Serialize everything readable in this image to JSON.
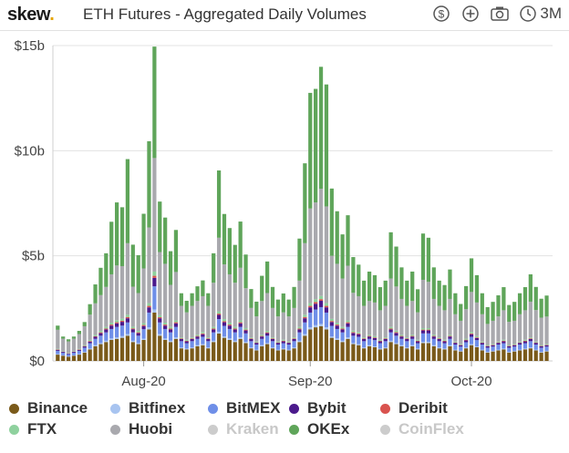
{
  "header": {
    "logo": "skew",
    "logo_dot": ".",
    "title": "ETH Futures - Aggregated Daily Volumes",
    "range": "3M",
    "icons": [
      "dollar-icon",
      "plus-circle-icon",
      "camera-icon",
      "clock-icon"
    ]
  },
  "chart_data": {
    "type": "bar",
    "stacked": true,
    "ylim": [
      0,
      15
    ],
    "y_ticks": [
      "$0",
      "$5b",
      "$10b",
      "$15b"
    ],
    "y_tick_values": [
      0,
      5,
      10,
      15
    ],
    "x_ticks": [
      "Aug-20",
      "Sep-20",
      "Oct-20"
    ],
    "x_tick_indices": [
      16,
      47,
      77
    ],
    "grid": true,
    "legend_position": "bottom",
    "series": [
      {
        "name": "Binance",
        "color": "#7a5a1a",
        "visible": true,
        "values": [
          0.3,
          0.25,
          0.2,
          0.25,
          0.3,
          0.4,
          0.55,
          0.7,
          0.8,
          0.9,
          1.0,
          1.05,
          1.1,
          1.2,
          0.9,
          0.8,
          1.0,
          1.5,
          2.3,
          1.2,
          1.0,
          0.9,
          1.05,
          0.6,
          0.55,
          0.6,
          0.7,
          0.75,
          0.6,
          0.9,
          1.3,
          1.1,
          1.0,
          0.9,
          1.05,
          0.85,
          0.6,
          0.5,
          0.7,
          0.8,
          0.6,
          0.5,
          0.55,
          0.5,
          0.6,
          0.9,
          1.2,
          1.5,
          1.6,
          1.65,
          1.5,
          1.1,
          1.0,
          0.9,
          1.05,
          0.8,
          0.75,
          0.6,
          0.7,
          0.65,
          0.55,
          0.6,
          0.9,
          0.8,
          0.7,
          0.6,
          0.7,
          0.55,
          0.85,
          0.85,
          0.7,
          0.6,
          0.55,
          0.7,
          0.5,
          0.45,
          0.6,
          0.75,
          0.65,
          0.5,
          0.4,
          0.45,
          0.5,
          0.55,
          0.4,
          0.45,
          0.5,
          0.55,
          0.6,
          0.5,
          0.4,
          0.45
        ]
      },
      {
        "name": "Bitfinex",
        "color": "#a8c4f0",
        "visible": true,
        "values": [
          0.03,
          0.02,
          0.02,
          0.02,
          0.03,
          0.03,
          0.04,
          0.05,
          0.05,
          0.06,
          0.07,
          0.07,
          0.08,
          0.08,
          0.06,
          0.05,
          0.06,
          0.1,
          0.15,
          0.08,
          0.07,
          0.06,
          0.07,
          0.04,
          0.04,
          0.04,
          0.05,
          0.05,
          0.04,
          0.06,
          0.09,
          0.07,
          0.07,
          0.06,
          0.07,
          0.06,
          0.04,
          0.03,
          0.05,
          0.05,
          0.04,
          0.03,
          0.04,
          0.03,
          0.04,
          0.06,
          0.08,
          0.1,
          0.1,
          0.11,
          0.1,
          0.07,
          0.07,
          0.06,
          0.07,
          0.05,
          0.05,
          0.04,
          0.05,
          0.04,
          0.04,
          0.04,
          0.06,
          0.05,
          0.05,
          0.04,
          0.05,
          0.04,
          0.06,
          0.06,
          0.05,
          0.04,
          0.04,
          0.05,
          0.03,
          0.03,
          0.04,
          0.05,
          0.04,
          0.03,
          0.03,
          0.03,
          0.03,
          0.04,
          0.03,
          0.03,
          0.03,
          0.04,
          0.04,
          0.03,
          0.03,
          0.03
        ]
      },
      {
        "name": "BitMEX",
        "color": "#6f8fe8",
        "visible": true,
        "values": [
          0.15,
          0.12,
          0.1,
          0.12,
          0.15,
          0.2,
          0.25,
          0.3,
          0.35,
          0.4,
          0.45,
          0.5,
          0.5,
          0.55,
          0.4,
          0.35,
          0.45,
          0.7,
          1.1,
          0.55,
          0.45,
          0.4,
          0.5,
          0.3,
          0.25,
          0.3,
          0.3,
          0.35,
          0.3,
          0.4,
          0.6,
          0.5,
          0.45,
          0.4,
          0.5,
          0.4,
          0.3,
          0.25,
          0.3,
          0.35,
          0.3,
          0.25,
          0.25,
          0.25,
          0.3,
          0.4,
          0.55,
          0.7,
          0.75,
          0.8,
          0.7,
          0.5,
          0.45,
          0.4,
          0.5,
          0.35,
          0.35,
          0.3,
          0.3,
          0.3,
          0.25,
          0.3,
          0.4,
          0.35,
          0.3,
          0.3,
          0.3,
          0.25,
          0.4,
          0.4,
          0.3,
          0.3,
          0.25,
          0.3,
          0.25,
          0.2,
          0.25,
          0.35,
          0.3,
          0.25,
          0.2,
          0.2,
          0.25,
          0.25,
          0.2,
          0.2,
          0.25,
          0.25,
          0.3,
          0.25,
          0.2,
          0.2
        ]
      },
      {
        "name": "Bybit",
        "color": "#4b1a8c",
        "visible": true,
        "values": [
          0.05,
          0.04,
          0.03,
          0.04,
          0.05,
          0.06,
          0.08,
          0.1,
          0.12,
          0.14,
          0.16,
          0.17,
          0.18,
          0.2,
          0.15,
          0.12,
          0.15,
          0.25,
          0.4,
          0.2,
          0.16,
          0.14,
          0.17,
          0.1,
          0.09,
          0.1,
          0.11,
          0.12,
          0.1,
          0.14,
          0.2,
          0.17,
          0.16,
          0.14,
          0.17,
          0.14,
          0.1,
          0.08,
          0.11,
          0.12,
          0.1,
          0.08,
          0.09,
          0.08,
          0.1,
          0.14,
          0.2,
          0.25,
          0.27,
          0.3,
          0.25,
          0.18,
          0.16,
          0.14,
          0.17,
          0.13,
          0.12,
          0.1,
          0.11,
          0.1,
          0.09,
          0.1,
          0.14,
          0.13,
          0.11,
          0.1,
          0.11,
          0.09,
          0.14,
          0.14,
          0.11,
          0.1,
          0.09,
          0.11,
          0.08,
          0.07,
          0.09,
          0.12,
          0.1,
          0.08,
          0.07,
          0.07,
          0.08,
          0.09,
          0.07,
          0.07,
          0.08,
          0.09,
          0.1,
          0.08,
          0.07,
          0.07
        ]
      },
      {
        "name": "Deribit",
        "color": "#d9534f",
        "visible": true,
        "values": [
          0.02,
          0.01,
          0.01,
          0.01,
          0.02,
          0.02,
          0.03,
          0.03,
          0.04,
          0.04,
          0.05,
          0.05,
          0.05,
          0.06,
          0.04,
          0.04,
          0.05,
          0.07,
          0.1,
          0.05,
          0.05,
          0.04,
          0.05,
          0.03,
          0.03,
          0.03,
          0.03,
          0.04,
          0.03,
          0.04,
          0.06,
          0.05,
          0.05,
          0.04,
          0.05,
          0.04,
          0.03,
          0.02,
          0.03,
          0.04,
          0.03,
          0.02,
          0.03,
          0.02,
          0.03,
          0.04,
          0.06,
          0.07,
          0.08,
          0.08,
          0.07,
          0.05,
          0.05,
          0.04,
          0.05,
          0.04,
          0.04,
          0.03,
          0.03,
          0.03,
          0.03,
          0.03,
          0.04,
          0.04,
          0.03,
          0.03,
          0.03,
          0.03,
          0.04,
          0.04,
          0.03,
          0.03,
          0.03,
          0.03,
          0.02,
          0.02,
          0.03,
          0.04,
          0.03,
          0.02,
          0.02,
          0.02,
          0.02,
          0.03,
          0.02,
          0.02,
          0.02,
          0.03,
          0.03,
          0.02,
          0.02,
          0.02
        ]
      },
      {
        "name": "FTX",
        "color": "#8fd19e",
        "visible": true,
        "values": [
          0.03,
          0.02,
          0.02,
          0.02,
          0.03,
          0.04,
          0.05,
          0.06,
          0.07,
          0.08,
          0.09,
          0.1,
          0.1,
          0.11,
          0.08,
          0.07,
          0.09,
          0.13,
          0.2,
          0.1,
          0.09,
          0.08,
          0.09,
          0.05,
          0.05,
          0.05,
          0.06,
          0.07,
          0.05,
          0.08,
          0.11,
          0.1,
          0.09,
          0.08,
          0.09,
          0.07,
          0.05,
          0.04,
          0.06,
          0.07,
          0.05,
          0.04,
          0.05,
          0.04,
          0.05,
          0.08,
          0.11,
          0.13,
          0.14,
          0.15,
          0.13,
          0.1,
          0.09,
          0.08,
          0.09,
          0.07,
          0.07,
          0.05,
          0.06,
          0.06,
          0.05,
          0.05,
          0.08,
          0.07,
          0.06,
          0.05,
          0.06,
          0.05,
          0.07,
          0.07,
          0.06,
          0.05,
          0.05,
          0.06,
          0.04,
          0.04,
          0.05,
          0.07,
          0.06,
          0.04,
          0.04,
          0.04,
          0.04,
          0.05,
          0.04,
          0.04,
          0.04,
          0.05,
          0.05,
          0.04,
          0.04,
          0.04
        ]
      },
      {
        "name": "Huobi",
        "color": "#a9a9ae",
        "visible": true,
        "values": [
          0.9,
          0.6,
          0.55,
          0.6,
          0.7,
          0.9,
          1.2,
          1.5,
          1.7,
          1.9,
          2.3,
          2.6,
          2.5,
          3.4,
          1.9,
          1.8,
          2.6,
          3.6,
          5.4,
          3.0,
          2.8,
          2.0,
          2.3,
          1.5,
          1.3,
          1.5,
          1.6,
          1.7,
          1.5,
          2.1,
          3.5,
          2.6,
          2.3,
          2.1,
          2.5,
          1.9,
          1.4,
          1.2,
          1.6,
          1.8,
          1.4,
          1.2,
          1.3,
          1.2,
          1.4,
          2.2,
          3.4,
          4.5,
          4.6,
          5.1,
          4.6,
          3.0,
          2.8,
          2.3,
          2.6,
          1.8,
          1.7,
          1.5,
          1.6,
          1.6,
          1.4,
          1.5,
          2.3,
          2.1,
          1.7,
          1.5,
          1.6,
          1.3,
          2.3,
          2.2,
          1.7,
          1.5,
          1.4,
          1.7,
          1.3,
          1.1,
          1.4,
          1.9,
          1.6,
          1.3,
          1.0,
          1.1,
          1.2,
          1.4,
          1.1,
          1.1,
          1.3,
          1.4,
          1.7,
          1.5,
          1.3,
          1.3
        ]
      },
      {
        "name": "Kraken",
        "color": "#d0d0d0",
        "visible": false,
        "values": []
      },
      {
        "name": "OKEx",
        "color": "#5fa55a",
        "visible": true,
        "values": [
          0.2,
          0.1,
          0.1,
          0.1,
          0.15,
          0.2,
          0.5,
          0.9,
          1.3,
          1.6,
          2.5,
          3.0,
          2.8,
          4.0,
          2.0,
          1.8,
          2.6,
          4.1,
          5.3,
          2.4,
          2.2,
          1.6,
          2.0,
          0.6,
          0.55,
          0.6,
          0.7,
          0.75,
          0.6,
          1.4,
          3.2,
          2.4,
          2.2,
          1.8,
          2.2,
          1.6,
          0.9,
          0.7,
          1.2,
          1.5,
          1.0,
          0.8,
          0.9,
          0.8,
          1.0,
          2.0,
          3.8,
          5.5,
          5.4,
          5.8,
          5.8,
          3.2,
          2.5,
          2.1,
          2.4,
          1.7,
          1.5,
          1.2,
          1.4,
          1.3,
          1.1,
          1.2,
          2.2,
          1.9,
          1.5,
          1.2,
          1.4,
          1.1,
          2.2,
          2.1,
          1.5,
          1.2,
          1.2,
          1.4,
          1.0,
          0.8,
          1.1,
          1.6,
          1.3,
          1.0,
          0.8,
          0.9,
          1.0,
          1.1,
          0.8,
          0.9,
          1.0,
          1.1,
          1.3,
          1.1,
          0.9,
          1.0
        ]
      },
      {
        "name": "CoinFlex",
        "color": "#d0d0d0",
        "visible": false,
        "values": []
      }
    ]
  }
}
